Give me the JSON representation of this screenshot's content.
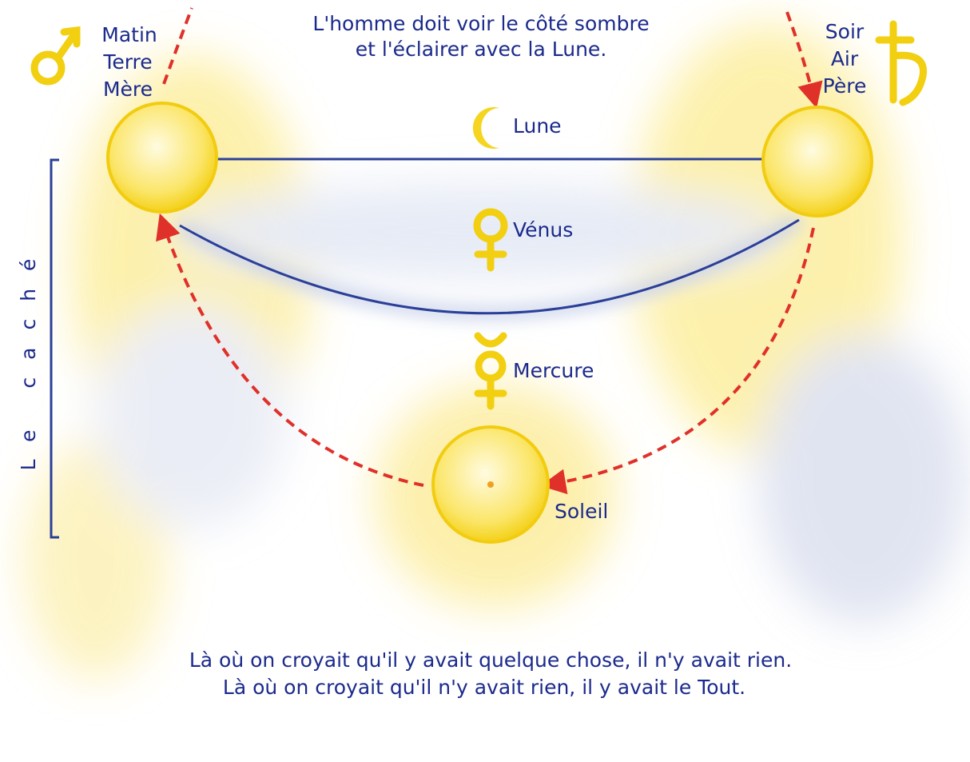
{
  "header": {
    "lines": [
      "L'homme doit voir le côté sombre",
      "et l'éclairer avec la Lune."
    ]
  },
  "left_labels": [
    "Matin",
    "Terre",
    "Mère"
  ],
  "right_labels": [
    "Soir",
    "Air",
    "Père"
  ],
  "nodes": [
    {
      "label": "Lune"
    },
    {
      "label": "Vénus"
    },
    {
      "label": "Mercure"
    },
    {
      "label": "Soleil"
    }
  ],
  "side_label": "Le caché",
  "footer": {
    "lines": [
      "Là où on croyait qu'il y avait quelque chose, il n'y avait rien.",
      "Là où on croyait qu'il n'y avait rien, il y avait le Tout."
    ]
  }
}
